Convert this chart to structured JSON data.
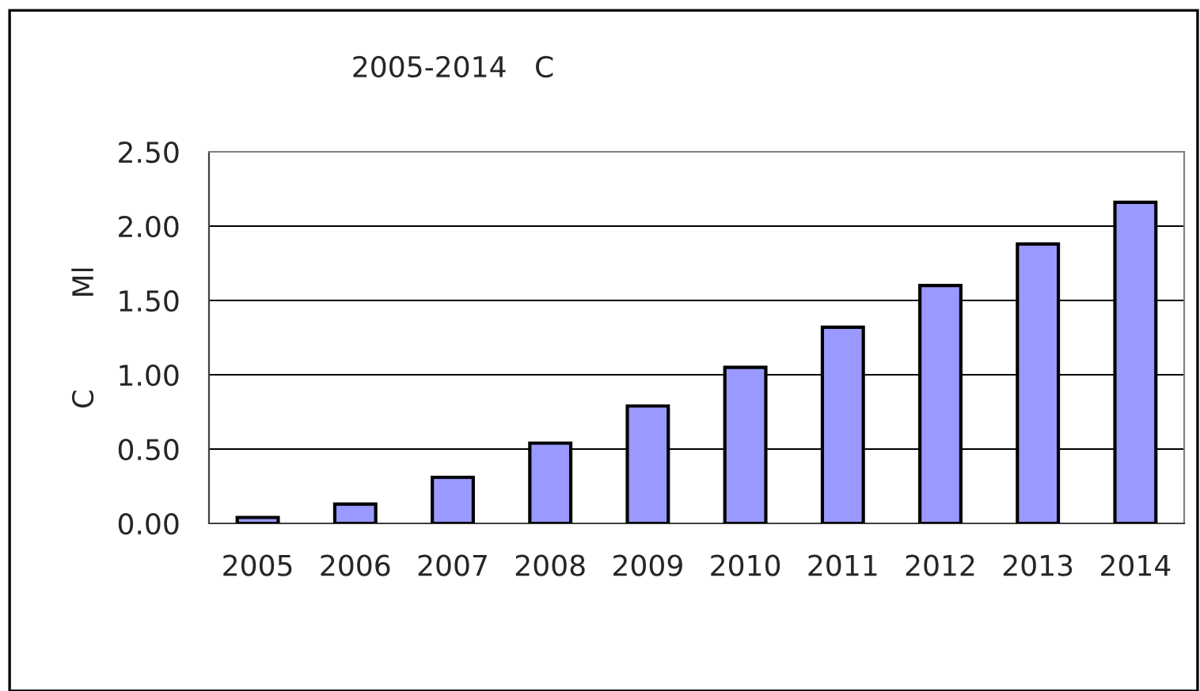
{
  "chart_data": {
    "type": "bar",
    "title": "2005-2014   C",
    "ylabel": "C          Ml",
    "categories": [
      "2005",
      "2006",
      "2007",
      "2008",
      "2009",
      "2010",
      "2011",
      "2012",
      "2013",
      "2014"
    ],
    "values": [
      0.04,
      0.13,
      0.31,
      0.54,
      0.79,
      1.05,
      1.32,
      1.6,
      1.88,
      2.16
    ],
    "color": "#9999ff",
    "ylim": [
      0,
      2.5
    ],
    "yticks": [
      {
        "value": 0,
        "label": "0.00"
      },
      {
        "value": 0.5,
        "label": "0.50"
      },
      {
        "value": 1,
        "label": "1.00"
      },
      {
        "value": 1.5,
        "label": "1.50"
      },
      {
        "value": 2,
        "label": "2.00"
      },
      {
        "value": 2.5,
        "label": "2.50"
      }
    ],
    "grid": "y",
    "legend": false
  }
}
